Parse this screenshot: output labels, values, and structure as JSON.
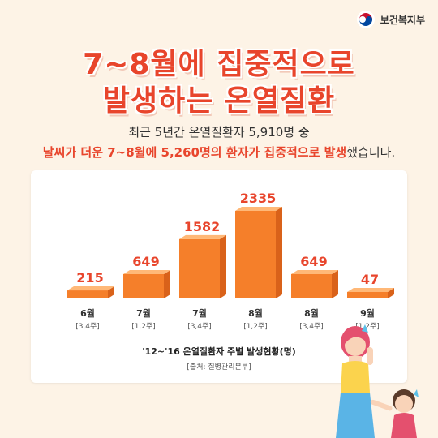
{
  "ministry": {
    "name": "보건복지부"
  },
  "title": {
    "line1": "7~8월에 집중적으로",
    "line2": "발생하는 온열질환"
  },
  "subtitle": {
    "line1": "최근 5년간 온열질환자 5,910명 중",
    "line2_highlight": "날씨가 더운 7~8월에 5,260명의 환자가 집중적으로 발생",
    "line2_rest": "했습니다."
  },
  "colors": {
    "accent": "#e8452c",
    "bar_top": "#ffb877",
    "bar_front": "#f57f2a",
    "bar_side": "#d9621a",
    "background": "#fdf3e6"
  },
  "chart_data": {
    "type": "bar",
    "categories": [
      "6월 [3,4주]",
      "7월 [1,2주]",
      "7월 [3,4주]",
      "8월 [1,2주]",
      "8월 [3,4주]",
      "9월 [1,2주]"
    ],
    "months": [
      "6월",
      "7월",
      "7월",
      "8월",
      "8월",
      "9월"
    ],
    "weeks": [
      "[3,4주]",
      "[1,2주]",
      "[3,4주]",
      "[1,2주]",
      "[3,4주]",
      "[1,2주]"
    ],
    "values": [
      215,
      649,
      1582,
      2335,
      649,
      47
    ],
    "xlabel": "'12~'16 온열질환자 주별 발생현황(명)",
    "source": "[출처: 질병관리본부]",
    "grid": false,
    "legend": "none"
  }
}
